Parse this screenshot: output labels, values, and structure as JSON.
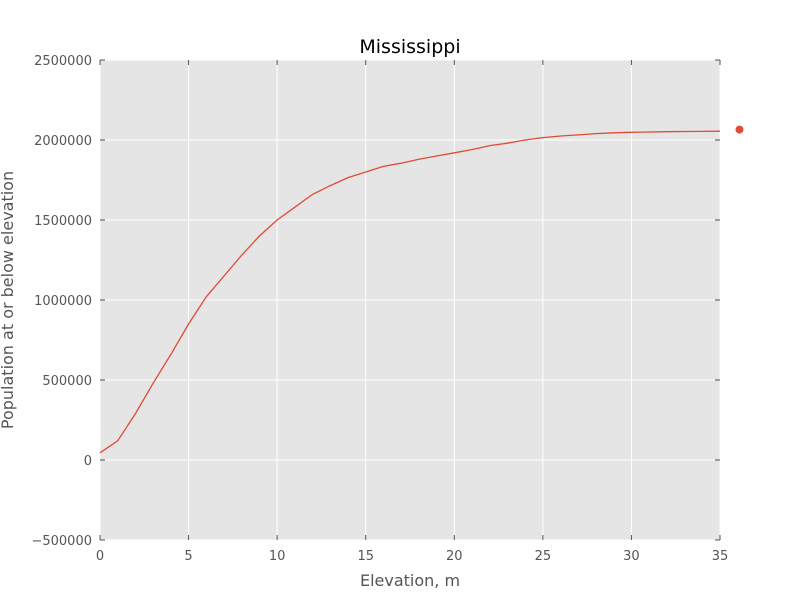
{
  "chart_data": {
    "type": "line",
    "title": "Mississippi",
    "xlabel": "Elevation, m",
    "ylabel": "Population at or below elevation",
    "xlim": [
      0,
      35
    ],
    "ylim": [
      -500000,
      2500000
    ],
    "x_ticks": [
      0,
      5,
      10,
      15,
      20,
      25,
      30,
      35
    ],
    "y_ticks": [
      -500000,
      0,
      500000,
      1000000,
      1500000,
      2000000,
      2500000
    ],
    "x_tick_labels": [
      "0",
      "5",
      "10",
      "15",
      "20",
      "25",
      "30",
      "35"
    ],
    "y_tick_labels": [
      "−500000",
      "0",
      "500000",
      "1000000",
      "1500000",
      "2000000",
      "2500000"
    ],
    "grid": true,
    "background": "#e5e5e5",
    "line_color": "#e24a33",
    "series": [
      {
        "x": [
          0,
          1,
          2,
          3,
          4,
          5,
          6,
          7,
          8,
          9,
          10,
          11,
          12,
          13,
          14,
          15,
          16,
          17,
          18,
          19,
          20,
          21,
          22,
          23,
          24,
          25,
          26,
          27,
          28,
          29,
          30,
          31,
          32,
          33,
          34,
          35
        ],
        "values": [
          45000,
          120000,
          290000,
          480000,
          660000,
          850000,
          1020000,
          1150000,
          1280000,
          1400000,
          1500000,
          1580000,
          1660000,
          1715000,
          1765000,
          1800000,
          1835000,
          1855000,
          1880000,
          1900000,
          1920000,
          1940000,
          1965000,
          1980000,
          2000000,
          2015000,
          2025000,
          2032000,
          2040000,
          2045000,
          2048000,
          2050000,
          2052000,
          2053000,
          2054000,
          2055000
        ]
      }
    ],
    "markers": [
      {
        "x": 36.1,
        "y": 2065000
      }
    ]
  }
}
